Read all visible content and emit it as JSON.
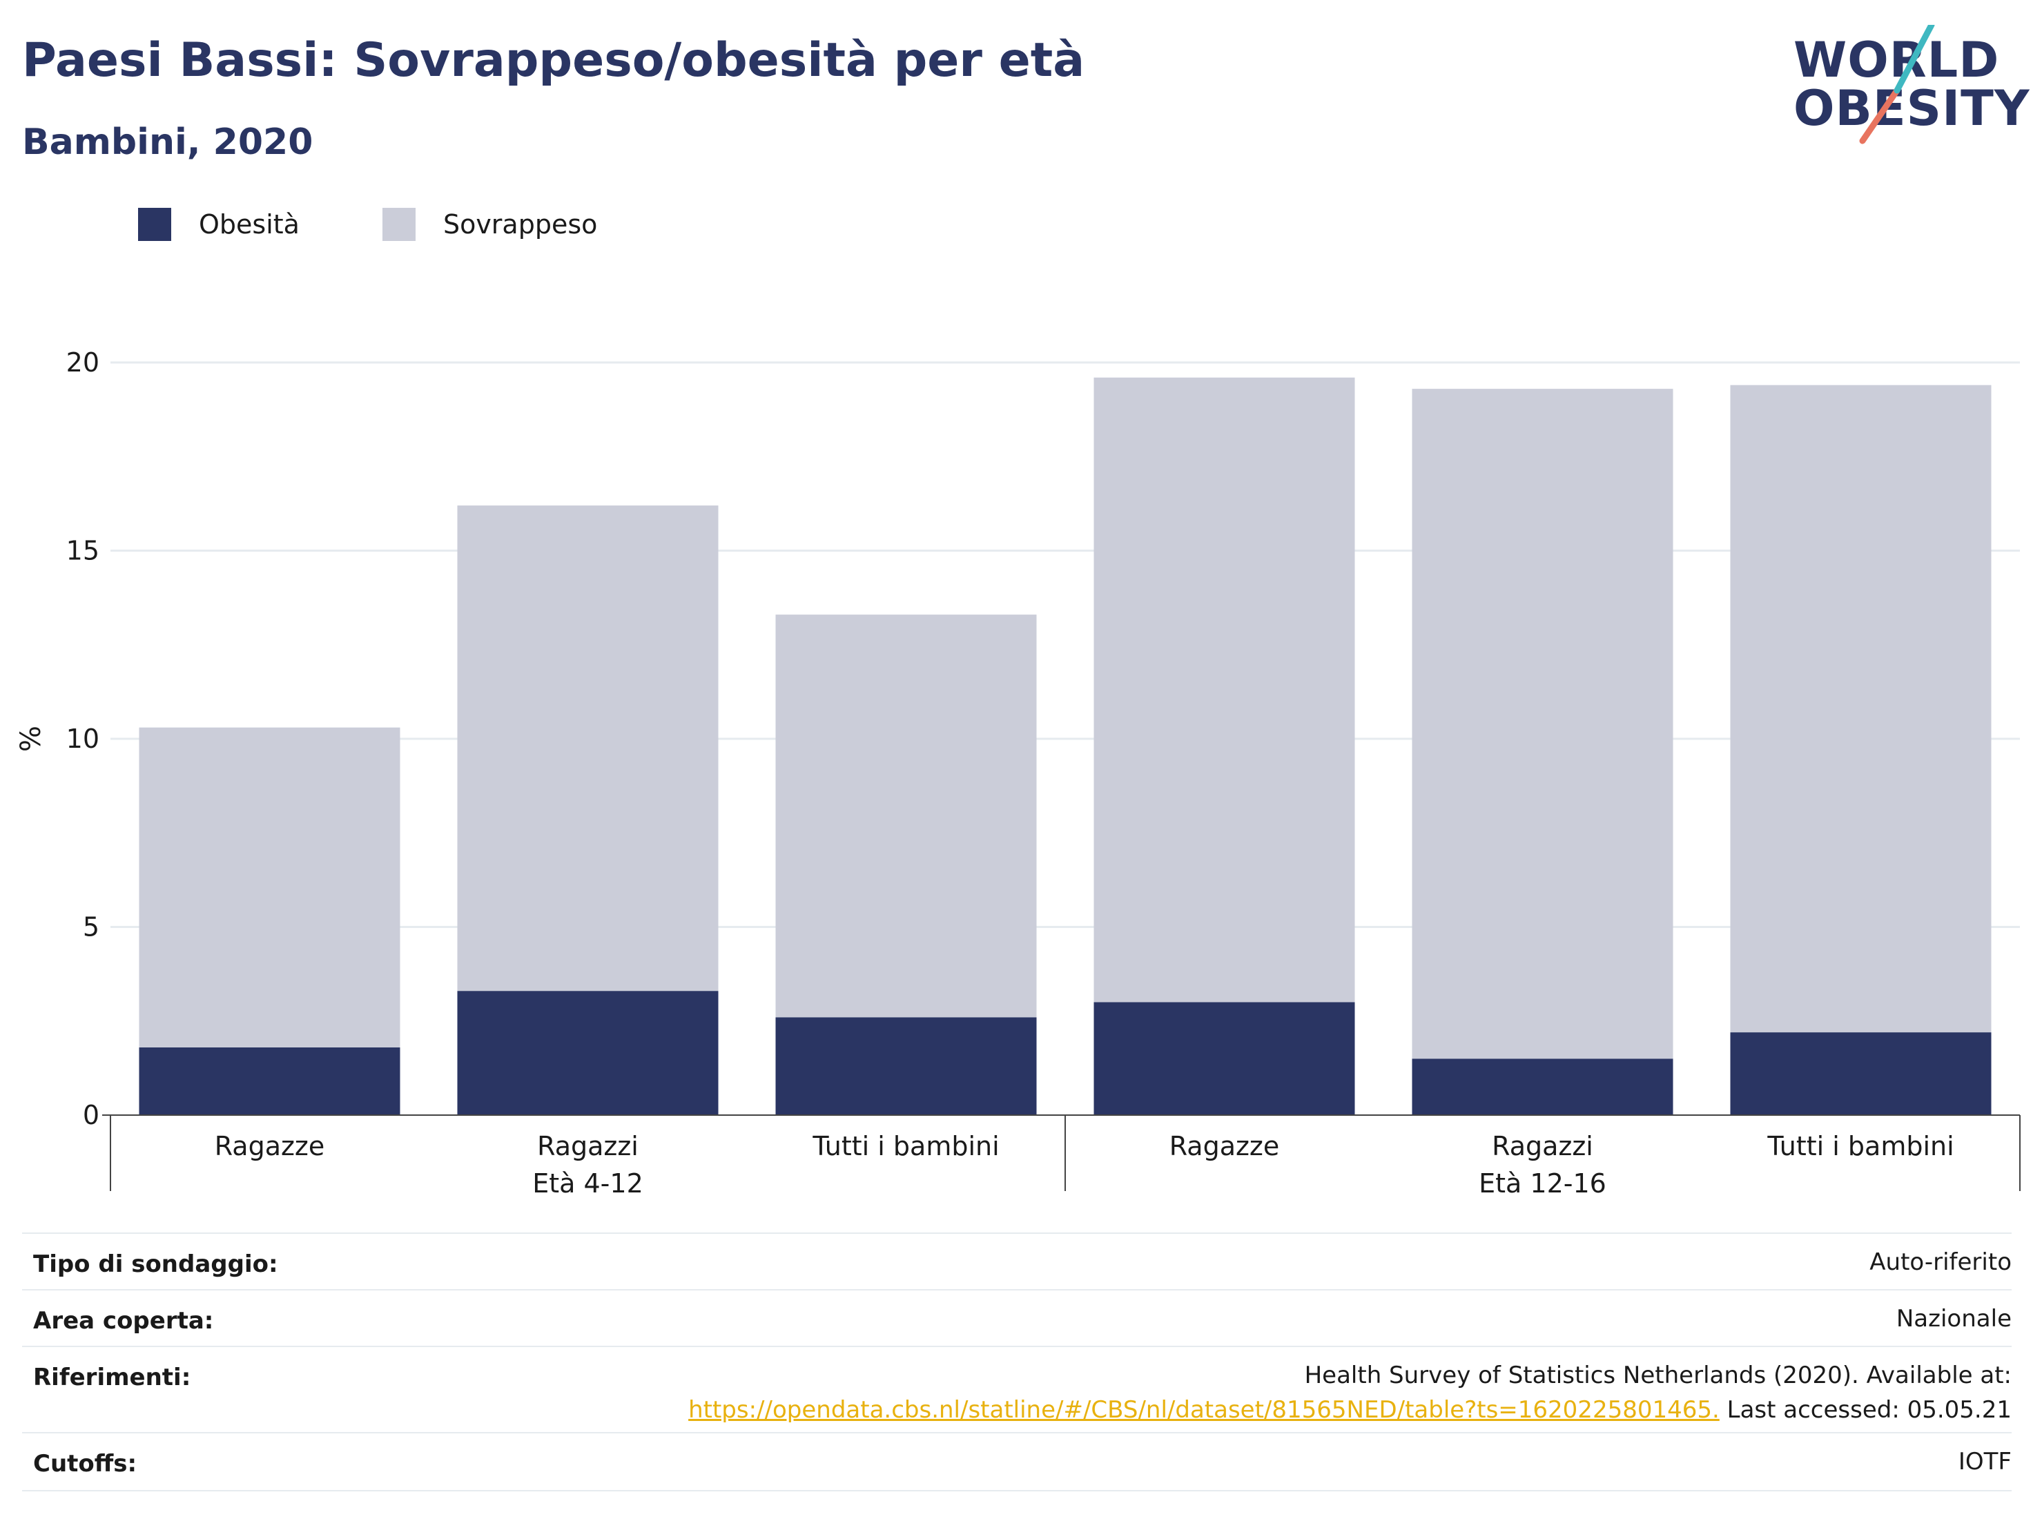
{
  "header": {
    "title": "Paesi Bassi: Sovrappeso/obesità per età",
    "subtitle": "Bambini, 2020"
  },
  "logo": {
    "line1": "WORLD",
    "line2": "OBESITY",
    "accent_teal": "#3fb8c1",
    "accent_coral": "#e8745f"
  },
  "legend": [
    {
      "label": "Obesità",
      "color": "#2a3563"
    },
    {
      "label": "Sovrappeso",
      "color": "#cbcdd9"
    }
  ],
  "chart_data": {
    "type": "bar",
    "stacked": true,
    "ylabel": "%",
    "ylim": [
      0,
      20
    ],
    "yticks": [
      0,
      5,
      10,
      15,
      20
    ],
    "grid": true,
    "legend_position": "top-left",
    "categories": [
      "Ragazze",
      "Ragazzi",
      "Tutti i bambini",
      "Ragazze",
      "Ragazzi",
      "Tutti i bambini"
    ],
    "groups": [
      {
        "label": "Età 4-12",
        "categories": [
          0,
          1,
          2
        ]
      },
      {
        "label": "Età 12-16",
        "categories": [
          3,
          4,
          5
        ]
      }
    ],
    "series": [
      {
        "name": "Obesità",
        "color": "#2a3563",
        "values": [
          1.8,
          3.3,
          2.6,
          3.0,
          1.5,
          2.2
        ]
      },
      {
        "name": "Sovrappeso",
        "color": "#cbcdd9",
        "values": [
          8.5,
          12.9,
          10.7,
          16.6,
          17.8,
          17.2
        ]
      }
    ]
  },
  "info": {
    "survey_type_label": "Tipo di sondaggio:",
    "survey_type_value": "Auto-riferito",
    "area_label": "Area coperta:",
    "area_value": "Nazionale",
    "references_label": "Riferimenti:",
    "references_text": "Health Survey of Statistics Netherlands (2020). Available at:",
    "references_link": "https://opendata.cbs.nl/statline/#/CBS/nl/dataset/81565NED/table?ts=1620225801465.",
    "references_suffix": " Last accessed: 05.05.21",
    "cutoffs_label": "Cutoffs:",
    "cutoffs_value": "IOTF"
  }
}
